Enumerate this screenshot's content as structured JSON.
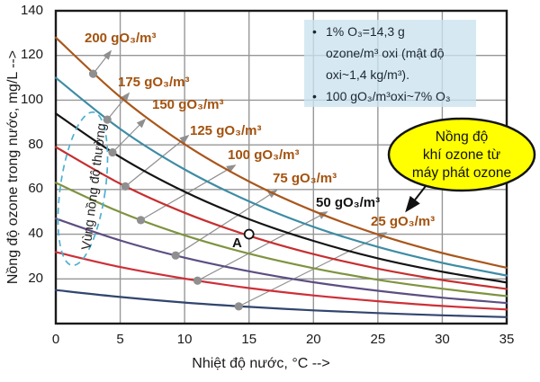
{
  "chart_data": {
    "type": "line",
    "title": "",
    "xlabel": "Nhiệt độ nước, °C -->",
    "ylabel": "Nồng độ ozone trong nước, mg/L -->",
    "xlim": [
      0,
      35
    ],
    "ylim": [
      0,
      140
    ],
    "grid": true,
    "x_ticks": [
      "0",
      "5",
      "10",
      "15",
      "20",
      "25",
      "30",
      "35"
    ],
    "y_ticks": [
      "20",
      "40",
      "60",
      "80",
      "100",
      "120",
      "140"
    ],
    "x": [
      0,
      5,
      10,
      15,
      20,
      25,
      30,
      35
    ],
    "series": [
      {
        "name": "200 gO₃/m³",
        "gas_g_per_m3": 200,
        "color": "#a9571b",
        "label_color": "#a3520e",
        "values": [
          128,
          101.4,
          80.3,
          63.6,
          50.4,
          39.9,
          31.6,
          25.0
        ],
        "marker_point": {
          "x": 2.9,
          "y": 111.8
        }
      },
      {
        "name": "175 gO₃/m³",
        "gas_g_per_m3": 175,
        "color": "#3e8ca4",
        "label_color": "#a3520e",
        "values": [
          110,
          87.1,
          69.0,
          54.7,
          43.3,
          34.3,
          27.2,
          21.5
        ],
        "marker_point": {
          "x": 4.0,
          "y": 91.3
        }
      },
      {
        "name": "150 gO₃/m³",
        "gas_g_per_m3": 150,
        "color": "#141414",
        "label_color": "#a3520e",
        "values": [
          94,
          74.5,
          59.0,
          46.7,
          37.0,
          29.2,
          23.2,
          18.4
        ],
        "marker_point": {
          "x": 4.4,
          "y": 76.6
        }
      },
      {
        "name": "125 gO₃/m³",
        "gas_g_per_m3": 125,
        "color": "#c62f2f",
        "label_color": "#a3520e",
        "values": [
          79,
          62.6,
          49.6,
          39.3,
          31.1,
          24.6,
          19.5,
          15.5
        ],
        "marker_point": {
          "x": 5.4,
          "y": 61.4
        }
      },
      {
        "name": "100 gO₃/m³",
        "gas_g_per_m3": 100,
        "color": "#7e9340",
        "label_color": "#a3520e",
        "values": [
          63,
          49.9,
          39.5,
          31.3,
          24.8,
          19.6,
          15.6,
          12.3
        ],
        "marker_point": {
          "x": 6.6,
          "y": 46.3
        }
      },
      {
        "name": "75 gO₃/m³",
        "gas_g_per_m3": 75,
        "color": "#5c4e82",
        "label_color": "#a3520e",
        "values": [
          47,
          37.2,
          29.5,
          23.4,
          18.5,
          14.7,
          11.6,
          9.2
        ],
        "marker_point": {
          "x": 9.3,
          "y": 30.5
        }
      },
      {
        "name": "50 gO₃/m³",
        "gas_g_per_m3": 50,
        "color": "#cd3038",
        "label_color": "#141414",
        "values": [
          32,
          25.3,
          20.1,
          15.9,
          12.6,
          10.0,
          7.9,
          6.3
        ],
        "marker_point": {
          "x": 11.0,
          "y": 19.2
        }
      },
      {
        "name": "25 gO₃/m³",
        "gas_g_per_m3": 25,
        "color": "#31456e",
        "label_color": "#a3520e",
        "values": [
          15,
          11.9,
          9.4,
          7.5,
          5.9,
          4.7,
          3.7,
          2.9
        ],
        "marker_point": {
          "x": 14.2,
          "y": 7.7
        }
      }
    ],
    "annotations": {
      "point_A": {
        "label": "A",
        "x": 15,
        "y": 40
      },
      "info_box": {
        "items": [
          {
            "bullet": "•",
            "text": "1% O₃=14,3 g\nozone/m³ oxi (mật độ\noxi~1,4 kg/m³)."
          },
          {
            "bullet": "•",
            "text": "100 gO₃/m³oxi~7% O₃"
          }
        ]
      },
      "callout": {
        "text": "Nồng độ\nkhí ozone từ\nmáy phát ozone"
      },
      "region": {
        "text": "Vùng nồng độ thường"
      }
    }
  }
}
